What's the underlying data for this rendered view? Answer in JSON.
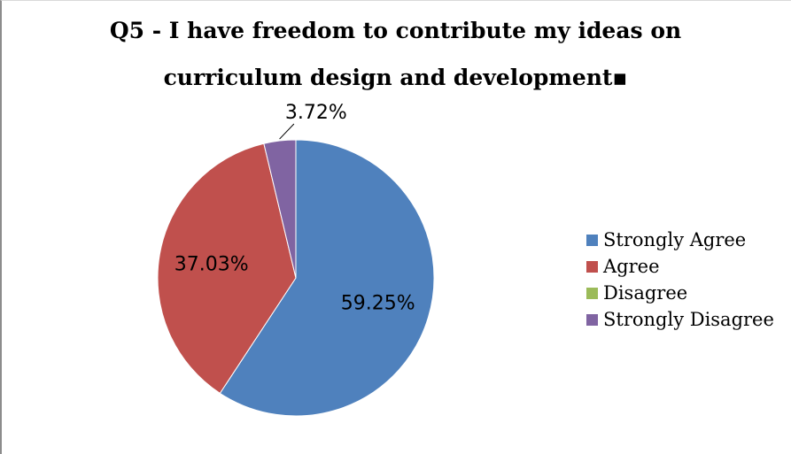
{
  "chart_data": {
    "type": "pie",
    "title_line1": "Q5 - I have freedom to contribute my ideas on",
    "title_line2": "curriculum design and development▪",
    "categories": [
      "Strongly Agree",
      "Agree",
      "Disagree",
      "Strongly Disagree"
    ],
    "values": [
      59.25,
      37.03,
      0,
      3.72
    ],
    "labels": [
      "59.25%",
      "37.03%",
      "",
      "3.72%"
    ],
    "colors": [
      "#4f81bd",
      "#c0504d",
      "#9bbb59",
      "#8064a2"
    ],
    "legend_position": "right"
  }
}
